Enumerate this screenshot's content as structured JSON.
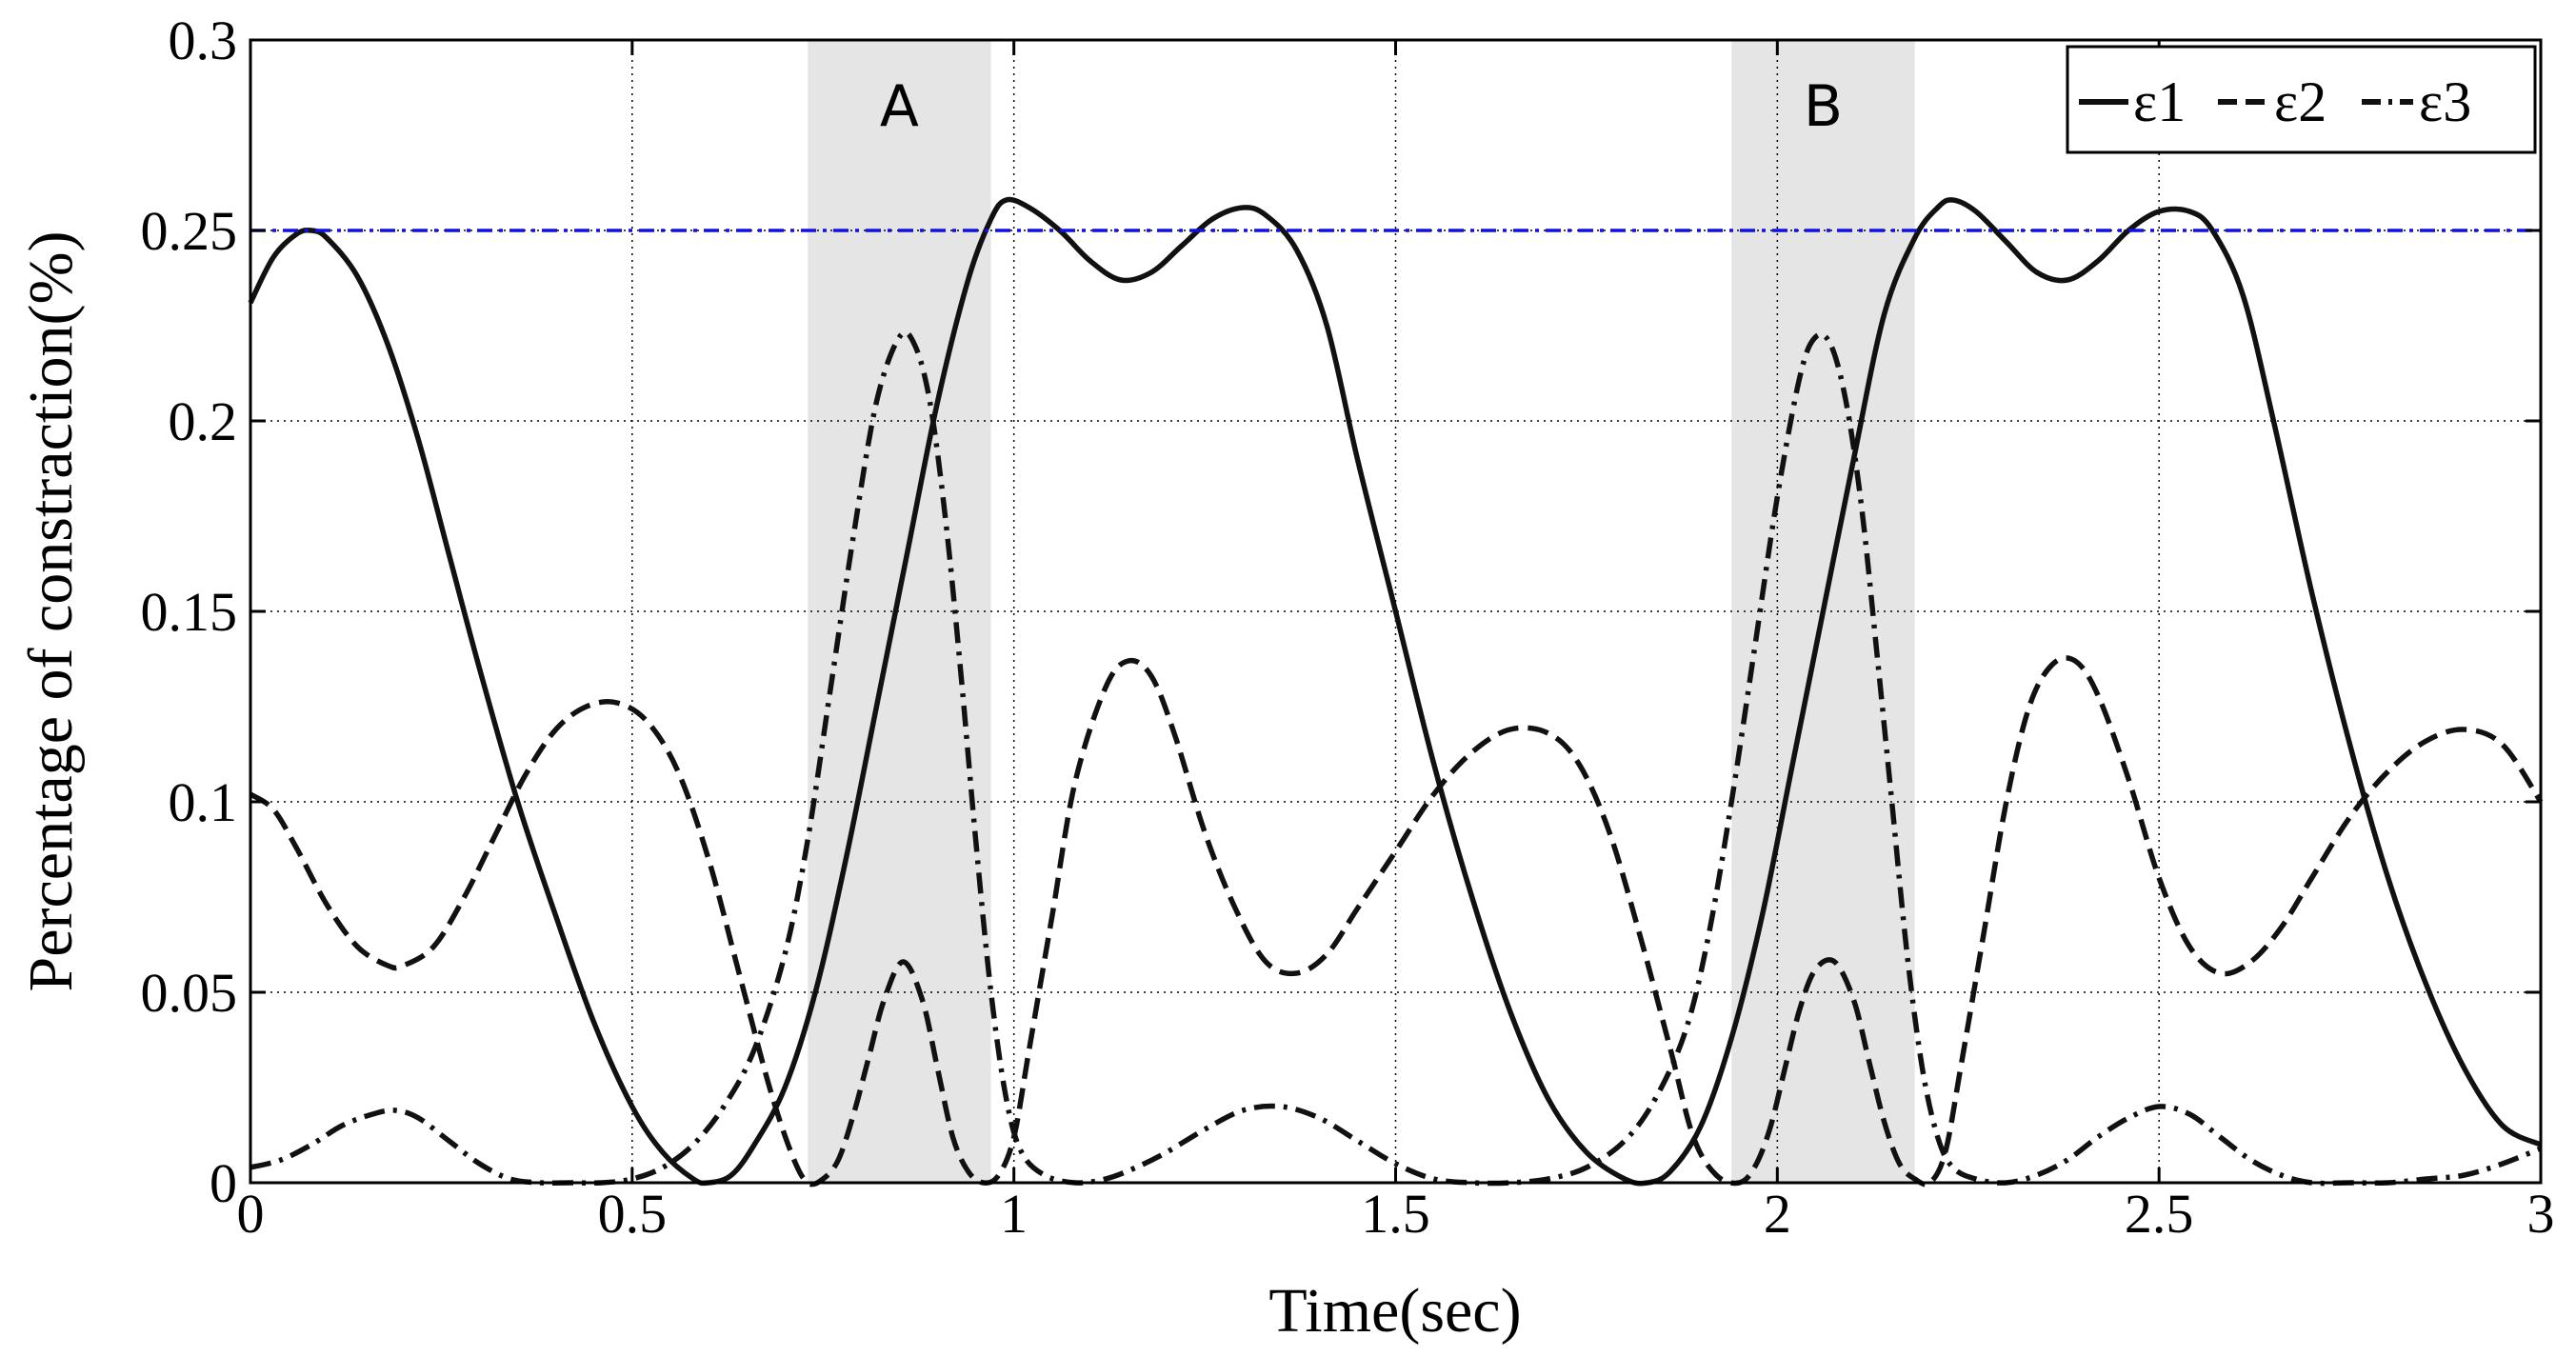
{
  "chart_data": {
    "type": "line",
    "title": "",
    "xlabel": "Time(sec)",
    "ylabel": "Percentage of constraction(%)",
    "xlim": [
      0,
      3
    ],
    "ylim": [
      0,
      0.3
    ],
    "xticks": [
      0,
      0.5,
      1,
      1.5,
      2,
      2.5,
      3
    ],
    "xtick_labels": [
      "0",
      "0.5",
      "1",
      "1.5",
      "2",
      "2.5",
      "3"
    ],
    "yticks": [
      0,
      0.05,
      0.1,
      0.15,
      0.2,
      0.25,
      0.3
    ],
    "ytick_labels": [
      "0",
      "0.05",
      "0.1",
      "0.15",
      "0.2",
      "0.25",
      "0.3"
    ],
    "grid": true,
    "legend_position": "top-right",
    "threshold": {
      "value": 0.25,
      "color": "#1010e0",
      "style": "dash-dot"
    },
    "shaded_regions": [
      {
        "label": "A",
        "x_start": 0.73,
        "x_end": 0.97,
        "color": "#e6e5e6"
      },
      {
        "label": "B",
        "x_start": 1.94,
        "x_end": 2.18,
        "color": "#e6e5e6"
      }
    ],
    "series": [
      {
        "name": "ε1",
        "style": "solid",
        "color": "#111111",
        "x": [
          0,
          0.03,
          0.06,
          0.08,
          0.1,
          0.14,
          0.18,
          0.22,
          0.26,
          0.3,
          0.35,
          0.4,
          0.45,
          0.5,
          0.54,
          0.58,
          0.6,
          0.63,
          0.66,
          0.7,
          0.74,
          0.78,
          0.82,
          0.86,
          0.9,
          0.94,
          0.97,
          0.99,
          1.02,
          1.06,
          1.1,
          1.14,
          1.18,
          1.22,
          1.26,
          1.3,
          1.33,
          1.37,
          1.41,
          1.45,
          1.5,
          1.55,
          1.6,
          1.65,
          1.7,
          1.75,
          1.8,
          1.83,
          1.86,
          1.9,
          1.94,
          1.98,
          2.02,
          2.06,
          2.1,
          2.14,
          2.18,
          2.21,
          2.23,
          2.26,
          2.3,
          2.34,
          2.38,
          2.42,
          2.46,
          2.5,
          2.54,
          2.57,
          2.61,
          2.65,
          2.7,
          2.75,
          2.8,
          2.85,
          2.9,
          2.95,
          3.0
        ],
        "y": [
          0.231,
          0.243,
          0.249,
          0.25,
          0.248,
          0.238,
          0.22,
          0.195,
          0.165,
          0.135,
          0.1,
          0.07,
          0.042,
          0.02,
          0.008,
          0.001,
          0.0,
          0.002,
          0.01,
          0.025,
          0.05,
          0.085,
          0.125,
          0.165,
          0.205,
          0.237,
          0.253,
          0.258,
          0.256,
          0.25,
          0.242,
          0.237,
          0.239,
          0.246,
          0.253,
          0.256,
          0.254,
          0.245,
          0.225,
          0.19,
          0.15,
          0.11,
          0.075,
          0.045,
          0.022,
          0.008,
          0.001,
          0.0,
          0.003,
          0.015,
          0.038,
          0.07,
          0.11,
          0.15,
          0.19,
          0.228,
          0.248,
          0.256,
          0.258,
          0.255,
          0.247,
          0.239,
          0.237,
          0.242,
          0.25,
          0.255,
          0.255,
          0.25,
          0.233,
          0.2,
          0.155,
          0.115,
          0.08,
          0.052,
          0.03,
          0.015,
          0.01
        ]
      },
      {
        "name": "ε2",
        "style": "dashed",
        "color": "#111111",
        "x": [
          0,
          0.03,
          0.06,
          0.1,
          0.14,
          0.18,
          0.2,
          0.24,
          0.28,
          0.32,
          0.36,
          0.4,
          0.44,
          0.48,
          0.52,
          0.56,
          0.6,
          0.64,
          0.68,
          0.71,
          0.73,
          0.75,
          0.77,
          0.79,
          0.81,
          0.83,
          0.855,
          0.88,
          0.9,
          0.92,
          0.94,
          0.96,
          0.98,
          1.0,
          1.02,
          1.05,
          1.08,
          1.12,
          1.15,
          1.18,
          1.21,
          1.25,
          1.29,
          1.33,
          1.37,
          1.41,
          1.45,
          1.5,
          1.55,
          1.6,
          1.65,
          1.7,
          1.74,
          1.78,
          1.82,
          1.86,
          1.89,
          1.92,
          1.95,
          1.97,
          1.99,
          2.01,
          2.03,
          2.05,
          2.075,
          2.1,
          2.12,
          2.14,
          2.16,
          2.18,
          2.2,
          2.22,
          2.24,
          2.27,
          2.3,
          2.33,
          2.36,
          2.39,
          2.42,
          2.46,
          2.5,
          2.54,
          2.58,
          2.62,
          2.66,
          2.7,
          2.75,
          2.8,
          2.85,
          2.9,
          2.95,
          3.0
        ],
        "y": [
          0.102,
          0.098,
          0.088,
          0.073,
          0.062,
          0.057,
          0.057,
          0.062,
          0.075,
          0.091,
          0.107,
          0.119,
          0.125,
          0.126,
          0.121,
          0.108,
          0.085,
          0.055,
          0.025,
          0.007,
          0.0,
          0.001,
          0.006,
          0.018,
          0.033,
          0.048,
          0.058,
          0.048,
          0.03,
          0.012,
          0.003,
          0.0,
          0.002,
          0.012,
          0.035,
          0.07,
          0.105,
          0.13,
          0.137,
          0.133,
          0.118,
          0.092,
          0.072,
          0.058,
          0.055,
          0.06,
          0.072,
          0.087,
          0.102,
          0.113,
          0.119,
          0.118,
          0.11,
          0.092,
          0.065,
          0.035,
          0.012,
          0.002,
          0.0,
          0.004,
          0.014,
          0.03,
          0.046,
          0.056,
          0.058,
          0.048,
          0.032,
          0.016,
          0.005,
          0.001,
          0.0,
          0.008,
          0.03,
          0.065,
          0.1,
          0.125,
          0.136,
          0.137,
          0.128,
          0.106,
          0.08,
          0.062,
          0.055,
          0.058,
          0.067,
          0.08,
          0.096,
          0.108,
          0.116,
          0.119,
          0.115,
          0.1
        ]
      },
      {
        "name": "ε3",
        "style": "dash-dot",
        "color": "#111111",
        "x": [
          0,
          0.04,
          0.08,
          0.12,
          0.16,
          0.19,
          0.22,
          0.26,
          0.3,
          0.34,
          0.38,
          0.42,
          0.46,
          0.5,
          0.54,
          0.58,
          0.62,
          0.66,
          0.7,
          0.73,
          0.76,
          0.79,
          0.82,
          0.85,
          0.87,
          0.89,
          0.91,
          0.93,
          0.95,
          0.97,
          0.99,
          1.01,
          1.04,
          1.08,
          1.12,
          1.16,
          1.2,
          1.25,
          1.3,
          1.35,
          1.4,
          1.45,
          1.5,
          1.55,
          1.6,
          1.65,
          1.7,
          1.75,
          1.8,
          1.84,
          1.88,
          1.91,
          1.94,
          1.97,
          2.0,
          2.03,
          2.05,
          2.07,
          2.09,
          2.11,
          2.13,
          2.15,
          2.17,
          2.19,
          2.21,
          2.23,
          2.26,
          2.3,
          2.34,
          2.38,
          2.42,
          2.46,
          2.5,
          2.54,
          2.58,
          2.62,
          2.66,
          2.7,
          2.75,
          2.8,
          2.85,
          2.9,
          2.95,
          3.0
        ],
        "y": [
          0.004,
          0.006,
          0.01,
          0.015,
          0.018,
          0.019,
          0.017,
          0.011,
          0.005,
          0.001,
          0.0,
          0.0,
          0.0,
          0.001,
          0.004,
          0.01,
          0.02,
          0.035,
          0.06,
          0.09,
          0.13,
          0.17,
          0.205,
          0.222,
          0.22,
          0.205,
          0.175,
          0.135,
          0.09,
          0.05,
          0.022,
          0.008,
          0.002,
          0.0,
          0.001,
          0.004,
          0.008,
          0.014,
          0.019,
          0.02,
          0.017,
          0.011,
          0.005,
          0.001,
          0.0,
          0.0,
          0.001,
          0.004,
          0.011,
          0.022,
          0.04,
          0.065,
          0.1,
          0.14,
          0.18,
          0.212,
          0.222,
          0.22,
          0.205,
          0.178,
          0.14,
          0.1,
          0.06,
          0.03,
          0.012,
          0.004,
          0.001,
          0.0,
          0.002,
          0.006,
          0.012,
          0.017,
          0.02,
          0.018,
          0.012,
          0.006,
          0.002,
          0.0,
          0.0,
          0.0,
          0.001,
          0.002,
          0.005,
          0.009
        ]
      }
    ]
  }
}
